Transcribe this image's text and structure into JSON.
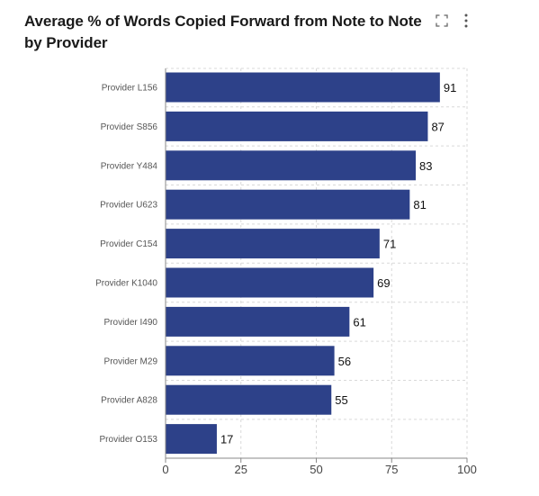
{
  "header": {
    "title": "Average % of Words Copied Forward from Note to Note by Provider",
    "expand_icon": "expand-icon",
    "menu_icon": "vertical-ellipsis-icon"
  },
  "colors": {
    "bar": "#2d4189",
    "grid": "#d9d9d9",
    "axis": "#888888"
  },
  "chart_data": {
    "type": "bar",
    "orientation": "horizontal",
    "title": "Average % of Words Copied Forward from Note to Note by Provider",
    "xlabel": "",
    "ylabel": "",
    "categories": [
      "Provider L156",
      "Provider S856",
      "Provider Y484",
      "Provider U623",
      "Provider C154",
      "Provider K1040",
      "Provider I490",
      "Provider M29",
      "Provider A828",
      "Provider O153"
    ],
    "values": [
      91,
      87,
      83,
      81,
      71,
      69,
      61,
      56,
      55,
      17
    ],
    "xlim": [
      0,
      100
    ],
    "xticks": [
      0,
      25,
      50,
      75,
      100
    ],
    "grid": true,
    "data_labels": true
  }
}
